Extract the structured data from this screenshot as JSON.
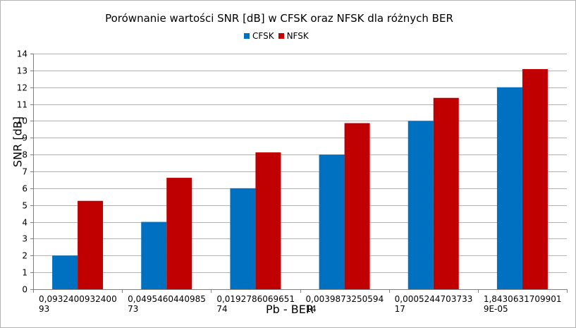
{
  "chart_data": {
    "type": "bar",
    "title": "Porównanie wartości SNR [dB] w CFSK oraz NFSK dla różnych BER",
    "xlabel": "Pb - BER",
    "ylabel": "SNR [dB]",
    "categories": [
      [
        "0,0932400932400",
        "93"
      ],
      [
        "0,0495460440985",
        "73"
      ],
      [
        "0,0192786069651",
        "74"
      ],
      [
        "0,0039873250594",
        "14"
      ],
      [
        "0,0005244703733",
        "17"
      ],
      [
        "1,8430631709901",
        "9E-05"
      ]
    ],
    "series": [
      {
        "name": "CFSK",
        "color": "#0070c0",
        "values": [
          2,
          4,
          6,
          8,
          10,
          12
        ]
      },
      {
        "name": "NFSK",
        "color": "#c00000",
        "values": [
          5.25,
          6.62,
          8.13,
          9.87,
          11.37,
          13.08
        ]
      }
    ],
    "ylim": [
      0,
      14
    ],
    "yticks": [
      0,
      1,
      2,
      3,
      4,
      5,
      6,
      7,
      8,
      9,
      10,
      11,
      12,
      13,
      14
    ],
    "grid": true,
    "legend_position": "top"
  }
}
